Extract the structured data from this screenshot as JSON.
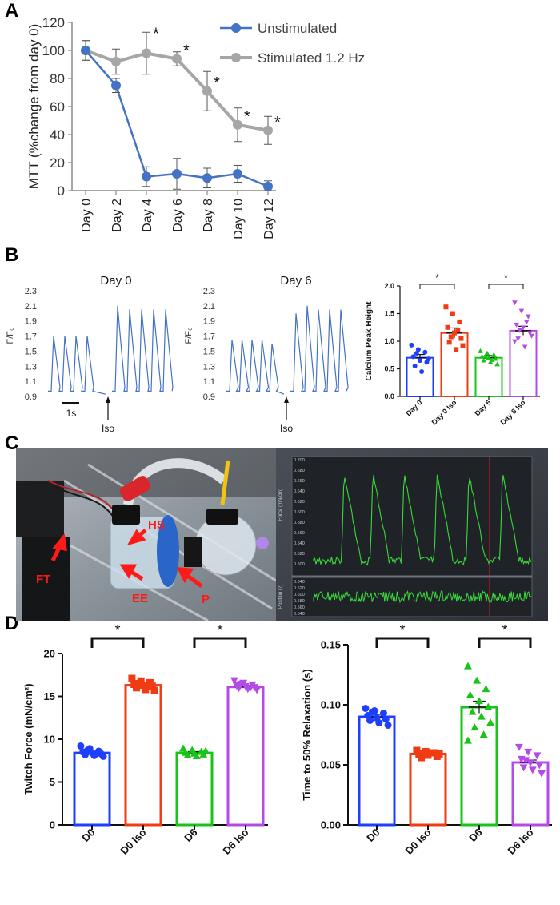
{
  "panel_labels": {
    "a": "A",
    "b": "B",
    "c": "C",
    "d": "D"
  },
  "colors": {
    "unstim": "#4472C4",
    "stim": "#A6A6A6",
    "trace": "#4472C4",
    "blue": "#1F3FFF",
    "red": "#F03C14",
    "green": "#19C419",
    "purple": "#B44BE6",
    "scope_green": "#39D93C"
  },
  "chart_data": [
    {
      "id": "A",
      "type": "line",
      "categories": [
        "Day 0",
        "Day 2",
        "Day 4",
        "Day 6",
        "Day 8",
        "Day 10",
        "Day 12"
      ],
      "ylabel": "MTT (%change from day 0)",
      "ylim": [
        0,
        120
      ],
      "yticks": [
        0,
        20,
        40,
        60,
        80,
        100,
        120
      ],
      "series": [
        {
          "name": "Unstimulated",
          "values": [
            100,
            75,
            10,
            12,
            9,
            12,
            3
          ],
          "errors": [
            7,
            5,
            7,
            11,
            7,
            6,
            4
          ]
        },
        {
          "name": "Stimulated 1.2 Hz",
          "values": [
            100,
            92,
            98,
            94,
            71,
            47,
            43
          ],
          "errors": [
            7,
            9,
            15,
            5,
            14,
            12,
            10
          ]
        }
      ],
      "significance": [
        "*",
        "*",
        "*",
        "*",
        "*"
      ],
      "significance_note": "asterisks at Day 4, 6, 8, 10, 12"
    },
    {
      "id": "B-trace-day0",
      "type": "line",
      "title": "Day 0",
      "ylabel": "F/F₀",
      "yticks": [
        "2.3",
        "2.1",
        "1.9",
        "1.7",
        "1.5",
        "1.3",
        "1.1",
        "0.9"
      ],
      "ylim": [
        0.9,
        2.3
      ],
      "peaks_before": [
        1.7,
        1.7,
        1.7,
        1.7
      ],
      "peaks_after": [
        2.1,
        2.05,
        2.05,
        2.05,
        2.05
      ],
      "baseline": 0.97,
      "scale_label": "1s",
      "iso_label": "Iso"
    },
    {
      "id": "B-trace-day6",
      "type": "line",
      "title": "Day 6",
      "ylabel": "F/F₀",
      "yticks": [
        "2.3",
        "2.1",
        "1.9",
        "1.7",
        "1.5",
        "1.3",
        "1.1",
        "0.9"
      ],
      "ylim": [
        0.9,
        2.3
      ],
      "peaks_before": [
        1.65,
        1.65,
        1.65,
        1.65,
        1.6
      ],
      "peaks_after": [
        2.0,
        2.1,
        2.05,
        2.05,
        2.05
      ],
      "baseline": 0.97,
      "iso_label": "Iso"
    },
    {
      "id": "B-bar",
      "type": "bar",
      "ylabel": "Calcium Peak Height",
      "categories": [
        "Day 0",
        "Day 0 Iso",
        "Day 6",
        "Day 6 Iso"
      ],
      "values": [
        0.7,
        1.15,
        0.7,
        1.19
      ],
      "errors": [
        0.06,
        0.09,
        0.04,
        0.08
      ],
      "ylim": [
        0,
        2.0
      ],
      "yticks": [
        "0.0",
        "0.5",
        "1.0",
        "1.5",
        "2.0"
      ],
      "points": [
        [
          0.93,
          0.85,
          0.8,
          0.72,
          0.65,
          0.62,
          0.55,
          0.45,
          0.68,
          0.78
        ],
        [
          1.62,
          1.5,
          1.35,
          1.25,
          1.15,
          1.05,
          0.98,
          0.85,
          0.92,
          1.08,
          1.2
        ],
        [
          0.82,
          0.78,
          0.75,
          0.72,
          0.7,
          0.68,
          0.65,
          0.62,
          0.58,
          0.73,
          0.66
        ],
        [
          1.7,
          1.55,
          1.45,
          1.3,
          1.25,
          1.15,
          1.05,
          0.9,
          1.1,
          1.2,
          1.35,
          1.0
        ]
      ],
      "significance": [
        "*",
        "*"
      ]
    },
    {
      "id": "D-force",
      "type": "bar",
      "ylabel": "Twitch Force (mN/cm²)",
      "categories": [
        "D0",
        "D0 Iso",
        "D6",
        "D6 Iso"
      ],
      "values": [
        8.4,
        16.3,
        8.4,
        16.1
      ],
      "errors": [
        0.2,
        0.3,
        0.15,
        0.2
      ],
      "ylim": [
        0,
        20
      ],
      "yticks": [
        "0",
        "5",
        "10",
        "15",
        "20"
      ],
      "points": [
        [
          9.2,
          8.9,
          8.6,
          8.5,
          8.4,
          8.3,
          8.2,
          8.1,
          8.0,
          8.7
        ],
        [
          17.1,
          16.8,
          16.6,
          16.4,
          16.3,
          16.2,
          16.0,
          15.8,
          15.7,
          16.5
        ],
        [
          8.9,
          8.7,
          8.5,
          8.4,
          8.3,
          8.2,
          8.1,
          8.0,
          8.6
        ],
        [
          16.9,
          16.6,
          16.4,
          16.3,
          16.2,
          16.1,
          16.0,
          15.9,
          15.8,
          16.5,
          16.0
        ]
      ],
      "significance": [
        "*",
        "*"
      ]
    },
    {
      "id": "D-relax",
      "type": "bar",
      "ylabel": "Time to 50% Relaxation (s)",
      "categories": [
        "D0",
        "D0 Iso",
        "D6",
        "D6 Iso"
      ],
      "values": [
        0.09,
        0.059,
        0.098,
        0.052
      ],
      "errors": [
        0.002,
        0.001,
        0.005,
        0.002
      ],
      "ylim": [
        0,
        0.15
      ],
      "yticks": [
        "0.00",
        "0.05",
        "0.10",
        "0.15"
      ],
      "points": [
        [
          0.097,
          0.095,
          0.093,
          0.091,
          0.089,
          0.088,
          0.087,
          0.085,
          0.083,
          0.094
        ],
        [
          0.062,
          0.061,
          0.06,
          0.059,
          0.058,
          0.057,
          0.056,
          0.06,
          0.059
        ],
        [
          0.132,
          0.12,
          0.113,
          0.108,
          0.103,
          0.098,
          0.094,
          0.09,
          0.085,
          0.081,
          0.075,
          0.07
        ],
        [
          0.065,
          0.061,
          0.058,
          0.055,
          0.052,
          0.05,
          0.048,
          0.046,
          0.043,
          0.054
        ]
      ],
      "significance": [
        "*",
        "*"
      ]
    }
  ],
  "photo": {
    "labels": {
      "hs": "HS",
      "ft": "FT",
      "ee": "EE",
      "p": "P"
    },
    "scope_axis_top": [
      "0.700",
      "0.680",
      "0.660",
      "0.640",
      "0.620",
      "0.600",
      "0.580",
      "0.560",
      "0.540",
      "0.520",
      "0.500"
    ],
    "scope_axis_bottom": [
      "0.640",
      "0.620",
      "0.600",
      "0.580",
      "0.560",
      "0.540"
    ],
    "scope_ylabel_top": "Force (mN/cm)",
    "scope_ylabel_bottom": "Position (?)"
  }
}
